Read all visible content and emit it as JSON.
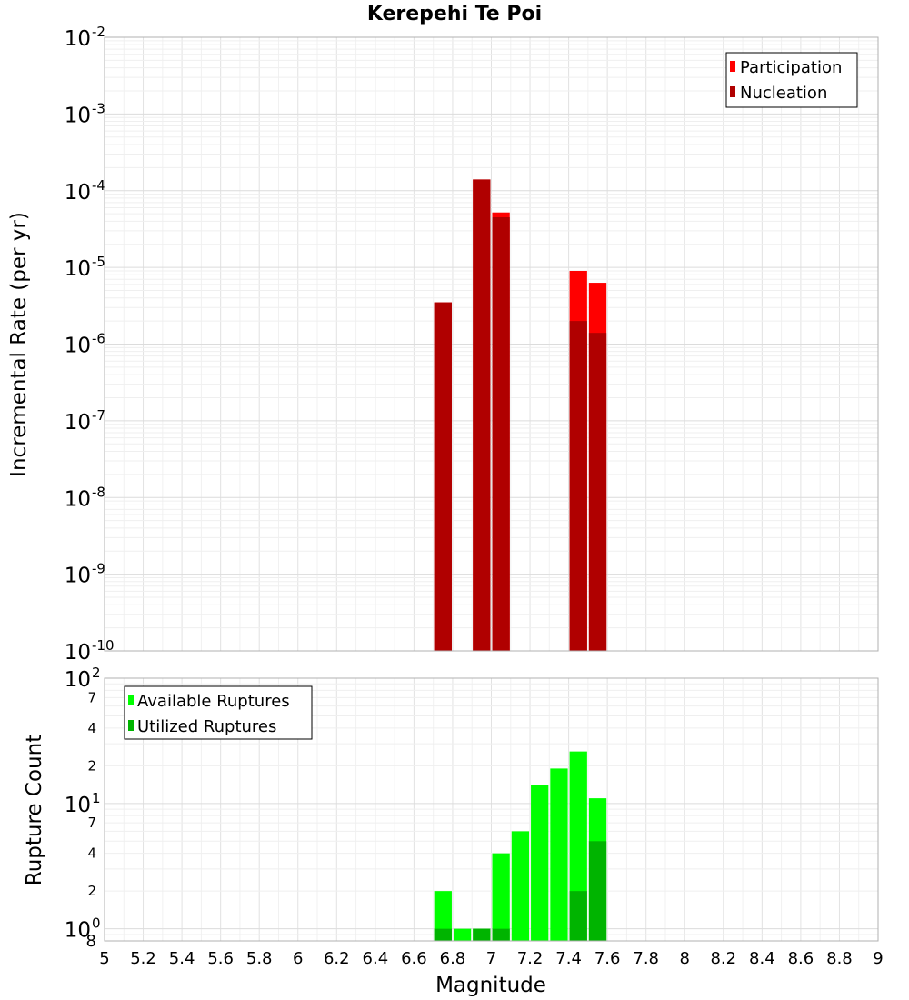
{
  "chart_data": [
    {
      "type": "bar",
      "title": "Kerepehi Te Poi",
      "xlabel": "Magnitude",
      "ylabel": "Incremental Rate (per yr)",
      "yscale": "log",
      "ylim_exp": [
        -10,
        -2
      ],
      "xlim": [
        5,
        9
      ],
      "bin_width": 0.1,
      "legend_position": "top-right",
      "y_tick_labels": [
        {
          "base": "10",
          "exp": "-2"
        },
        {
          "base": "10",
          "exp": "-3"
        },
        {
          "base": "10",
          "exp": "-4"
        },
        {
          "base": "10",
          "exp": "-5"
        },
        {
          "base": "10",
          "exp": "-6"
        },
        {
          "base": "10",
          "exp": "-7"
        },
        {
          "base": "10",
          "exp": "-8"
        },
        {
          "base": "10",
          "exp": "-9"
        },
        {
          "base": "10",
          "exp": "-10"
        }
      ],
      "series": [
        {
          "name": "Participation",
          "color": "#ff0000",
          "x": [
            6.75,
            6.95,
            7.05,
            7.45,
            7.55
          ],
          "values": [
            3.5e-06,
            0.00014,
            5.2e-05,
            9e-06,
            6.3e-06
          ]
        },
        {
          "name": "Nucleation",
          "color": "#b00000",
          "x": [
            6.75,
            6.95,
            7.05,
            7.45,
            7.55
          ],
          "values": [
            3.5e-06,
            0.00014,
            4.5e-05,
            2e-06,
            1.4e-06
          ]
        }
      ]
    },
    {
      "type": "bar",
      "xlabel": "Magnitude",
      "ylabel": "Rupture Count",
      "yscale": "log",
      "ylim": [
        0.8,
        100
      ],
      "xlim": [
        5,
        9
      ],
      "bin_width": 0.1,
      "legend_position": "top-left",
      "y_major_labels": [
        {
          "value": 100,
          "base": "10",
          "exp": "2"
        },
        {
          "value": 10,
          "base": "10",
          "exp": "1"
        },
        {
          "value": 1,
          "base": "10",
          "exp": "0"
        }
      ],
      "y_minor_labels": [
        {
          "value": 70,
          "label": "7"
        },
        {
          "value": 40,
          "label": "4"
        },
        {
          "value": 20,
          "label": "2"
        },
        {
          "value": 7,
          "label": "7"
        },
        {
          "value": 4,
          "label": "4"
        },
        {
          "value": 2,
          "label": "2"
        },
        {
          "value": 0.8,
          "label": "8"
        }
      ],
      "series": [
        {
          "name": "Available Ruptures",
          "color": "#00ff00",
          "x": [
            6.75,
            6.85,
            6.95,
            7.05,
            7.15,
            7.25,
            7.35,
            7.45,
            7.55
          ],
          "values": [
            2,
            1,
            1,
            4,
            6,
            14,
            19,
            26,
            11
          ]
        },
        {
          "name": "Utilized Ruptures",
          "color": "#00b400",
          "x": [
            6.75,
            6.85,
            6.95,
            7.05,
            7.15,
            7.25,
            7.35,
            7.45,
            7.55
          ],
          "values": [
            1,
            0,
            1,
            1,
            0,
            0,
            0,
            2,
            5
          ]
        }
      ]
    }
  ],
  "x_tick_labels": [
    "5",
    "5.2",
    "5.4",
    "5.6",
    "5.8",
    "6",
    "6.2",
    "6.4",
    "6.6",
    "6.8",
    "7",
    "7.2",
    "7.4",
    "7.6",
    "7.8",
    "8",
    "8.2",
    "8.4",
    "8.6",
    "8.8",
    "9"
  ]
}
